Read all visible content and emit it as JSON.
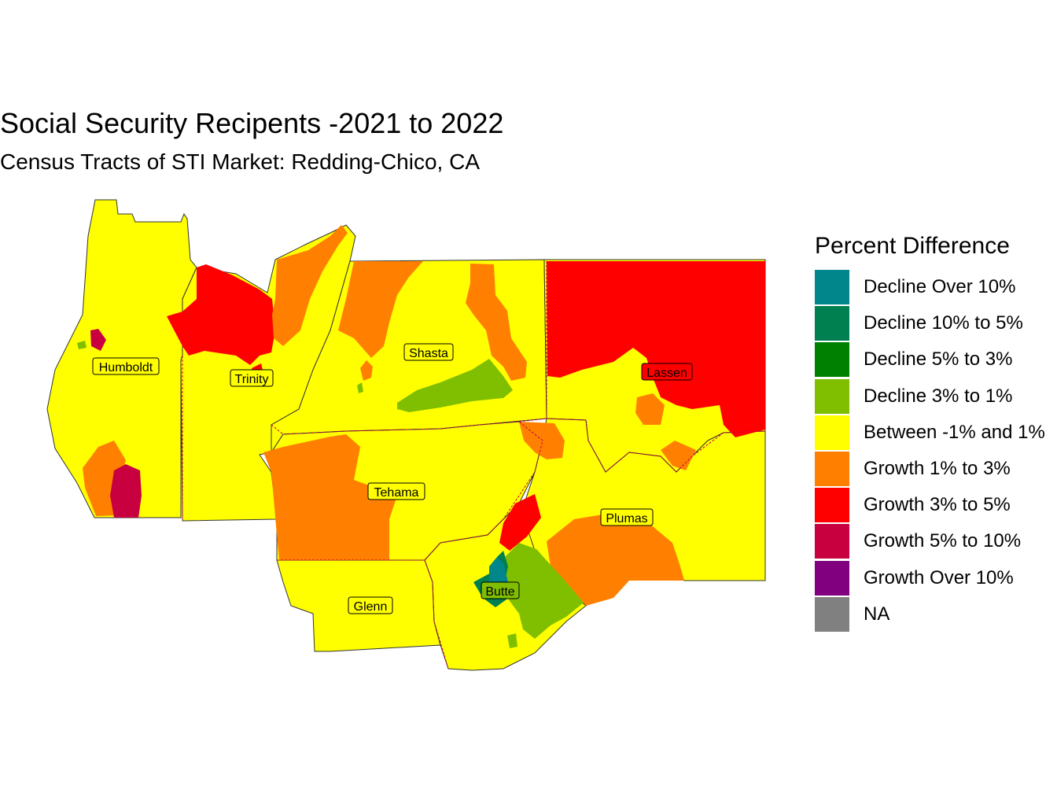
{
  "title": "Social Security Recipents -2021 to 2022",
  "subtitle": "Census Tracts of STI Market: Redding-Chico, CA",
  "legend": {
    "title": "Percent Difference",
    "items": [
      {
        "label": "Decline Over 10%",
        "color": "#00868B"
      },
      {
        "label": "Decline 10% to 5%",
        "color": "#008050"
      },
      {
        "label": "Decline 5% to 3%",
        "color": "#008000"
      },
      {
        "label": "Decline 3% to 1%",
        "color": "#80BF00"
      },
      {
        "label": "Between -1% and 1%",
        "color": "#FFFF00"
      },
      {
        "label": "Growth 1% to 3%",
        "color": "#FF8000"
      },
      {
        "label": "Growth 3% to 5%",
        "color": "#FF0000"
      },
      {
        "label": "Growth 5% to 10%",
        "color": "#C80040"
      },
      {
        "label": "Growth Over 10%",
        "color": "#800080"
      },
      {
        "label": "NA",
        "color": "#808080"
      }
    ]
  },
  "counties": {
    "humboldt": "Humboldt",
    "trinity": "Trinity",
    "shasta": "Shasta",
    "lassen": "Lassen",
    "tehama": "Tehama",
    "plumas": "Plumas",
    "glenn": "Glenn",
    "butte": "Butte"
  }
}
